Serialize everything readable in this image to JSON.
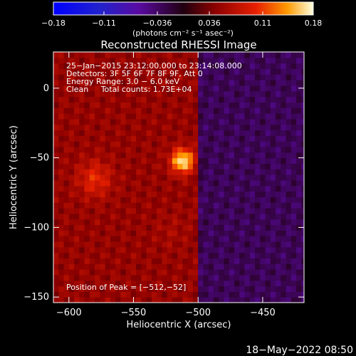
{
  "chart_data": {
    "type": "heatmap",
    "title": "Reconstructed RHESSI Image",
    "xlabel": "Heliocentric X (arcsec)",
    "ylabel": "Heliocentric Y (arcsec)",
    "xlim": [
      -612,
      -418
    ],
    "ylim": [
      -154,
      26
    ],
    "x_ticks": [
      -600,
      -550,
      -500,
      -450
    ],
    "x_tick_labels": [
      "−600",
      "−550",
      "−500",
      "−450"
    ],
    "y_ticks": [
      0,
      -50,
      -100,
      -150
    ],
    "y_tick_labels": [
      "0",
      "−50",
      "−100",
      "−150"
    ],
    "colorbar": {
      "min": -0.18,
      "max": 0.18,
      "tick_values": [
        -0.18,
        -0.11,
        -0.036,
        0.036,
        0.11,
        0.18
      ],
      "tick_labels": [
        "−0.18",
        "−0.11",
        "−0.036",
        "0.036",
        "0.11",
        "0.18"
      ],
      "units_label": "(photons cm⁻² s⁻¹ asec⁻²)"
    },
    "annotations": [
      "25−Jan−2015 23:12:00.000 to 23:14:08.000",
      "Detectors: 3F 5F 6F 7F 8F 9F, Att 0",
      "Energy Range: 3.0 − 6.0 keV",
      "Clean     Total counts: 1.73E+04"
    ],
    "peak_label": "Position of Peak = [−512,−52]",
    "peak": {
      "x": -512,
      "y": -52
    },
    "sources": [
      {
        "x": -512,
        "y": -52,
        "value": 0.18
      },
      {
        "x": -580,
        "y": -65,
        "value": 0.1
      },
      {
        "x": -520,
        "y": -102,
        "value": 0.06
      }
    ],
    "background_regions": [
      {
        "x_from": -612,
        "x_to": -498,
        "value": 0.05
      },
      {
        "x_from": -498,
        "x_to": -418,
        "value": -0.03
      }
    ],
    "grid": false
  },
  "footer": {
    "timestamp": "18−May−2022 08:50"
  }
}
